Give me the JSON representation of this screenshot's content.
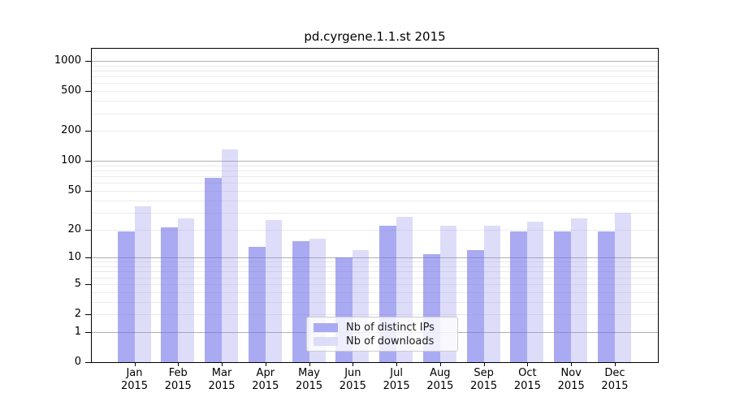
{
  "title": "pd.cyrgene.1.1.st 2015",
  "chart_data": {
    "type": "bar",
    "title": "pd.cyrgene.1.1.st 2015",
    "categories": [
      "Jan",
      "Feb",
      "Mar",
      "Apr",
      "May",
      "Jun",
      "Jul",
      "Aug",
      "Sep",
      "Oct",
      "Nov",
      "Dec"
    ],
    "year_label": "2015",
    "series": [
      {
        "name": "Nb of distinct IPs",
        "color": "rgba(113,113,233,0.6)",
        "solid_color": "#aaaaf2",
        "values": [
          19,
          21,
          67,
          13,
          15,
          10,
          22,
          11,
          12,
          19,
          19,
          19
        ]
      },
      {
        "name": "Nb of downloads",
        "color": "rgba(142,142,238,0.3)",
        "solid_color": "#ddddfa",
        "values": [
          35,
          26,
          130,
          25,
          16,
          12,
          27,
          22,
          22,
          24,
          26,
          30
        ]
      }
    ],
    "y_axis": {
      "scale": "log1p",
      "ticks": [
        0,
        1,
        2,
        5,
        10,
        20,
        50,
        100,
        200,
        500,
        1000
      ],
      "ylim": [
        0,
        1000
      ]
    },
    "grid": "horizontal",
    "grid_major_color": "#b0b0b0",
    "grid_minor_color": "#ebebeb",
    "legend_position": "inside-bottom-center"
  },
  "legend": {
    "items": [
      {
        "label": "Nb of distinct IPs"
      },
      {
        "label": "Nb of downloads"
      }
    ]
  }
}
